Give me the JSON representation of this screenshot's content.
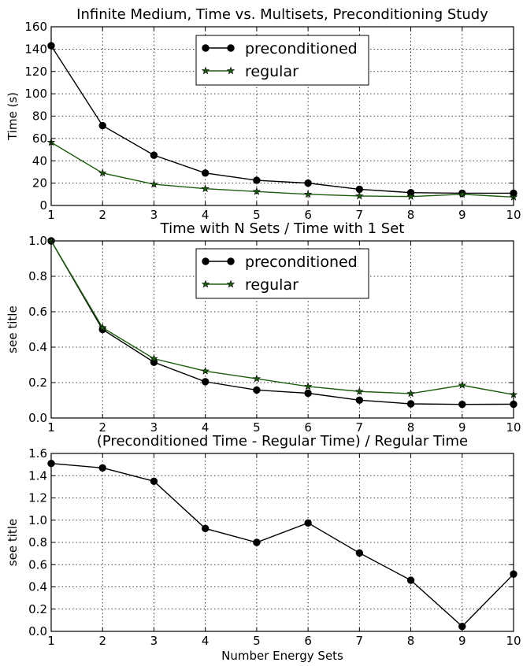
{
  "chart_data": [
    {
      "type": "line",
      "title": "Infinite Medium, Time vs. Multisets, Preconditioning Study",
      "xlabel": "",
      "ylabel": "Time (s)",
      "x": [
        1,
        2,
        3,
        4,
        5,
        6,
        7,
        8,
        9,
        10
      ],
      "xlim": [
        1,
        10
      ],
      "ylim": [
        0,
        160
      ],
      "xticks": [
        "1",
        "2",
        "3",
        "4",
        "5",
        "6",
        "7",
        "8",
        "9",
        "10"
      ],
      "yticks": [
        "0",
        "20",
        "40",
        "60",
        "80",
        "100",
        "120",
        "140",
        "160"
      ],
      "grid": true,
      "legend": "upper-center",
      "series": [
        {
          "name": "preconditioned",
          "color": "#000000",
          "marker": "circle",
          "values": [
            143,
            71.5,
            45,
            29,
            22.5,
            20,
            14.5,
            11.5,
            11,
            11
          ]
        },
        {
          "name": "regular",
          "color": "#1a5e0c",
          "marker": "star",
          "values": [
            56.5,
            29,
            19,
            15,
            12.5,
            10,
            8.5,
            8,
            10,
            7.5
          ]
        }
      ]
    },
    {
      "type": "line",
      "title": "Time with N Sets / Time with 1 Set",
      "xlabel": "",
      "ylabel": "see title",
      "x": [
        1,
        2,
        3,
        4,
        5,
        6,
        7,
        8,
        9,
        10
      ],
      "xlim": [
        1,
        10
      ],
      "ylim": [
        0,
        1.0
      ],
      "xticks": [
        "1",
        "2",
        "3",
        "4",
        "5",
        "6",
        "7",
        "8",
        "9",
        "10"
      ],
      "yticks": [
        "0.0",
        "0.2",
        "0.4",
        "0.6",
        "0.8",
        "1.0"
      ],
      "grid": true,
      "legend": "upper-center",
      "series": [
        {
          "name": "preconditioned",
          "color": "#000000",
          "marker": "circle",
          "values": [
            1.0,
            0.5,
            0.315,
            0.205,
            0.158,
            0.14,
            0.101,
            0.08,
            0.077,
            0.078
          ]
        },
        {
          "name": "regular",
          "color": "#1a5e0c",
          "marker": "star",
          "values": [
            1.0,
            0.51,
            0.335,
            0.265,
            0.222,
            0.178,
            0.15,
            0.138,
            0.185,
            0.132
          ]
        }
      ]
    },
    {
      "type": "line",
      "title": "(Preconditioned Time - Regular Time) / Regular Time",
      "xlabel": "Number Energy Sets",
      "ylabel": "see title",
      "x": [
        1,
        2,
        3,
        4,
        5,
        6,
        7,
        8,
        9,
        10
      ],
      "xlim": [
        1,
        10
      ],
      "ylim": [
        0,
        1.6
      ],
      "xticks": [
        "1",
        "2",
        "3",
        "4",
        "5",
        "6",
        "7",
        "8",
        "9",
        "10"
      ],
      "yticks": [
        "0.0",
        "0.2",
        "0.4",
        "0.6",
        "0.8",
        "1.0",
        "1.2",
        "1.4",
        "1.6"
      ],
      "grid": true,
      "legend": "none",
      "series": [
        {
          "color": "#000000",
          "marker": "circle",
          "values": [
            1.51,
            1.47,
            1.35,
            0.925,
            0.8,
            0.975,
            0.705,
            0.46,
            0.045,
            0.515
          ]
        }
      ]
    }
  ]
}
